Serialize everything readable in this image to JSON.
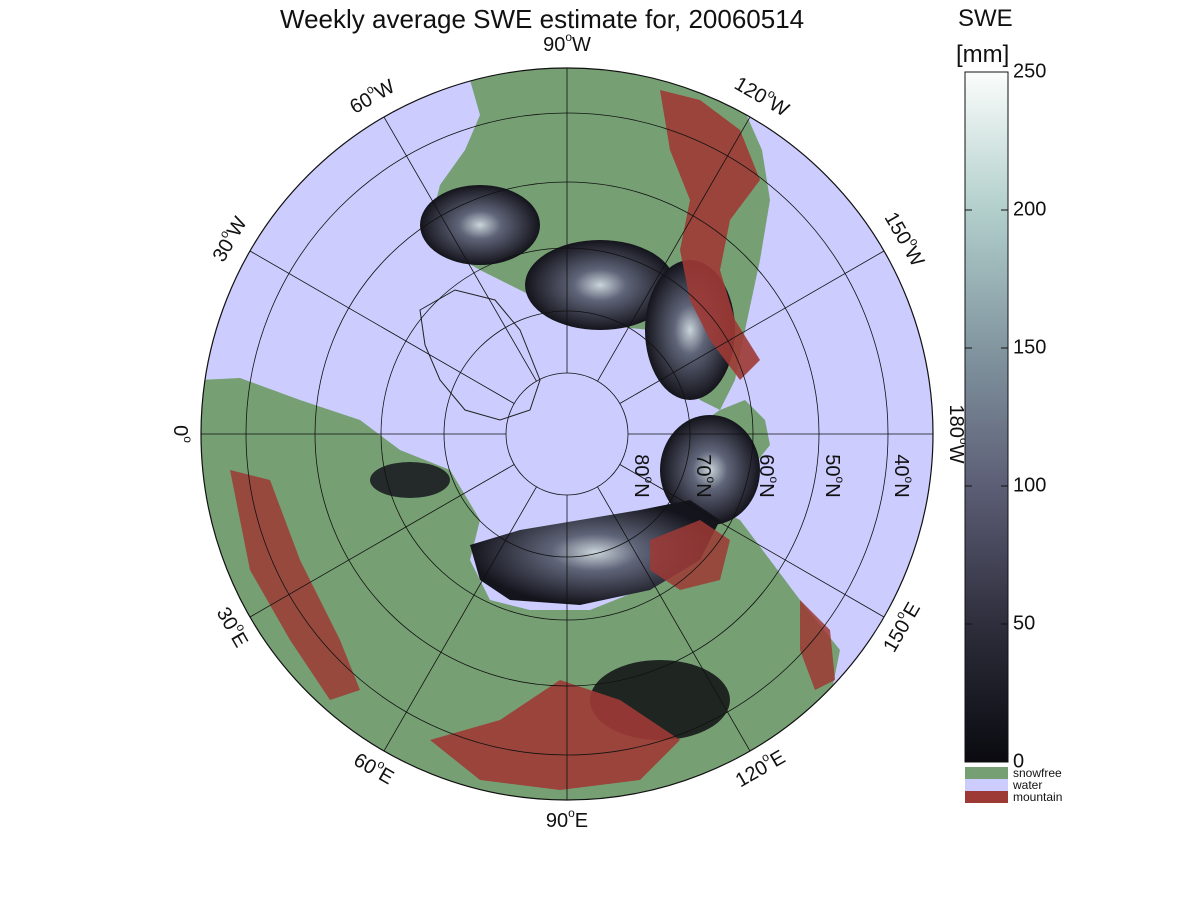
{
  "title": "Weekly average SWE estimate for, 20060514",
  "colorbar": {
    "label_line1": "SWE",
    "label_line2": "[mm]",
    "ticks": [
      "0",
      "50",
      "100",
      "150",
      "200",
      "250"
    ],
    "range": [
      0,
      250
    ],
    "categories": [
      {
        "name": "snowfree",
        "color": "#76a073"
      },
      {
        "name": "water",
        "color": "#ccccff"
      },
      {
        "name": "mountain",
        "color": "#9e3a35"
      }
    ]
  },
  "map": {
    "projection": "north polar stereographic",
    "longitude_labels": [
      {
        "text": "90°W",
        "base": "90",
        "sup": "o",
        "suffix": "W"
      },
      {
        "text": "120°W",
        "base": "120",
        "sup": "o",
        "suffix": "W"
      },
      {
        "text": "150°W",
        "base": "150",
        "sup": "o",
        "suffix": "W"
      },
      {
        "text": "180°W",
        "base": "180",
        "sup": "o",
        "suffix": "W"
      },
      {
        "text": "150°E",
        "base": "150",
        "sup": "o",
        "suffix": "E"
      },
      {
        "text": "120°E",
        "base": "120",
        "sup": "o",
        "suffix": "E"
      },
      {
        "text": "90°E",
        "base": "90",
        "sup": "o",
        "suffix": "E"
      },
      {
        "text": "60°E",
        "base": "60",
        "sup": "o",
        "suffix": "E"
      },
      {
        "text": "30°E",
        "base": "30",
        "sup": "o",
        "suffix": "E"
      },
      {
        "text": "0°",
        "base": "0",
        "sup": "o",
        "suffix": ""
      },
      {
        "text": "30°W",
        "base": "30",
        "sup": "o",
        "suffix": "W"
      },
      {
        "text": "60°W",
        "base": "60",
        "sup": "o",
        "suffix": "W"
      }
    ],
    "latitude_labels": [
      {
        "text": "80°N",
        "base": "80",
        "sup": "o",
        "suffix": "N"
      },
      {
        "text": "70°N",
        "base": "70",
        "sup": "o",
        "suffix": "N"
      },
      {
        "text": "60°N",
        "base": "60",
        "sup": "o",
        "suffix": "N"
      },
      {
        "text": "50°N",
        "base": "50",
        "sup": "o",
        "suffix": "N"
      },
      {
        "text": "40°N",
        "base": "40",
        "sup": "o",
        "suffix": "N"
      }
    ]
  }
}
